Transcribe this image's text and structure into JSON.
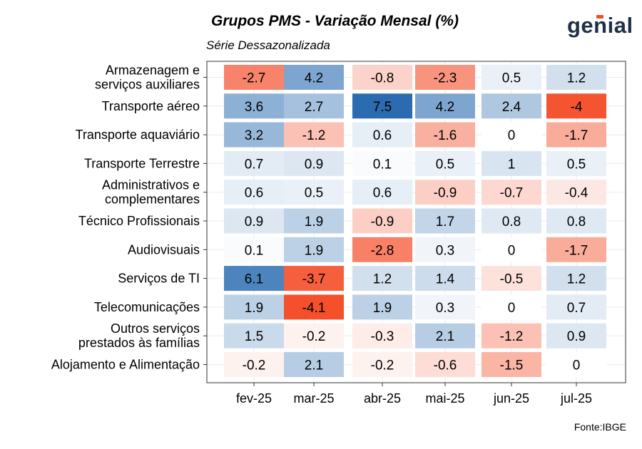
{
  "header": {
    "title": "Grupos PMS - Variação Mensal (%)",
    "subtitle": "Série Dessazonalizada",
    "logo_text": "genial",
    "source": "Fonte:IBGE"
  },
  "colors": {
    "positive": "#2b6cb0",
    "negative": "#f4502b",
    "neutral": "#ffffff"
  },
  "chart_data": {
    "type": "heatmap",
    "title": "Grupos PMS - Variação Mensal (%)",
    "subtitle": "Série Dessazonalizada",
    "xlabel": "",
    "ylabel": "",
    "x": [
      "fev-25",
      "mar-25",
      "abr-25",
      "mai-25",
      "jun-25",
      "jul-25"
    ],
    "y": [
      [
        "Armazenagem e",
        "serviços auxiliares"
      ],
      [
        "Transporte aéreo"
      ],
      [
        "Transporte aquaviário"
      ],
      [
        "Transporte Terrestre"
      ],
      [
        "Administrativos e",
        "complementares"
      ],
      [
        "Técnico Profissionais"
      ],
      [
        "Audiovisuais"
      ],
      [
        "Serviços de TI"
      ],
      [
        "Telecomunicações"
      ],
      [
        "Outros serviços",
        "prestados às famílias"
      ],
      [
        "Alojamento e Alimentação"
      ]
    ],
    "values": [
      [
        -2.7,
        4.2,
        -0.8,
        -2.3,
        0.5,
        1.2
      ],
      [
        3.6,
        2.7,
        7.5,
        4.2,
        2.4,
        -4
      ],
      [
        3.2,
        -1.2,
        0.6,
        -1.6,
        0,
        -1.7
      ],
      [
        0.7,
        0.9,
        0.1,
        0.5,
        1,
        0.5
      ],
      [
        0.6,
        0.5,
        0.6,
        -0.9,
        -0.7,
        -0.4
      ],
      [
        0.9,
        1.9,
        -0.9,
        1.7,
        0.8,
        0.8
      ],
      [
        0.1,
        1.9,
        -2.8,
        0.3,
        0,
        -1.7
      ],
      [
        6.1,
        -3.7,
        1.2,
        1.4,
        -0.5,
        1.2
      ],
      [
        1.9,
        -4.1,
        1.9,
        0.3,
        0,
        0.7
      ],
      [
        1.5,
        -0.2,
        -0.3,
        2.1,
        -1.2,
        0.9
      ],
      [
        -0.2,
        2.1,
        -0.2,
        -0.6,
        -1.5,
        0
      ]
    ],
    "grid": true
  }
}
